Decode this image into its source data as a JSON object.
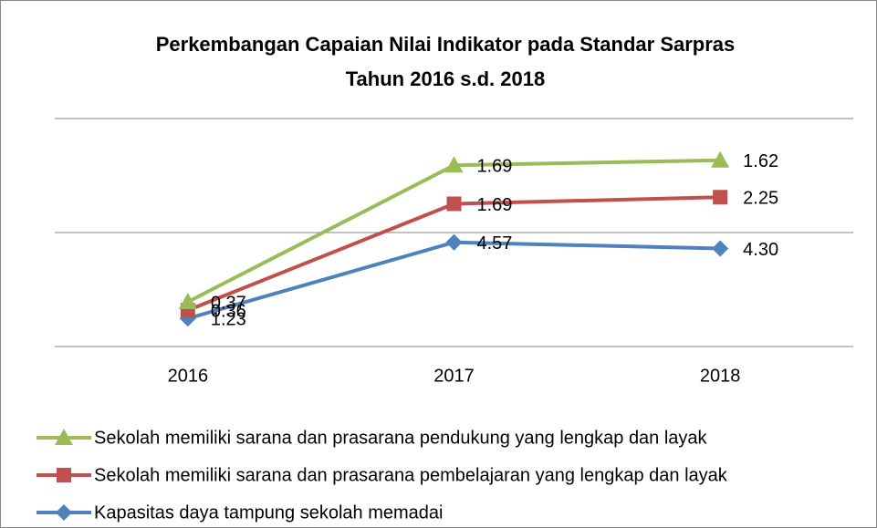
{
  "chart_data": {
    "type": "line",
    "stacked": true,
    "title": [
      "Perkembangan Capaian Nilai Indikator pada Standar Sarpras",
      "Tahun 2016 s.d. 2018"
    ],
    "categories": [
      "2016",
      "2017",
      "2018"
    ],
    "series": [
      {
        "name": "Kapasitas daya tampung sekolah memadai",
        "color": "#4f81bd",
        "marker": "diamond",
        "values": [
          1.23,
          4.57,
          4.3
        ],
        "value_labels": [
          "1.23",
          "4.57",
          "4.30"
        ]
      },
      {
        "name": "Sekolah memiliki sarana dan prasarana pembelajaran yang lengkap dan layak",
        "color": "#c0504d",
        "marker": "square",
        "values": [
          0.36,
          1.69,
          2.25
        ],
        "value_labels": [
          "0.36",
          "1.69",
          "2.25"
        ]
      },
      {
        "name": "Sekolah memiliki sarana dan prasarana pendukung yang lengkap dan layak",
        "color": "#9bbb59",
        "marker": "triangle",
        "values": [
          0.37,
          1.69,
          1.62
        ],
        "value_labels": [
          "0.37",
          "1.69",
          "1.62"
        ]
      }
    ],
    "ylim": [
      0,
      10
    ],
    "yticks": [
      0,
      5,
      10
    ],
    "grid": true
  }
}
